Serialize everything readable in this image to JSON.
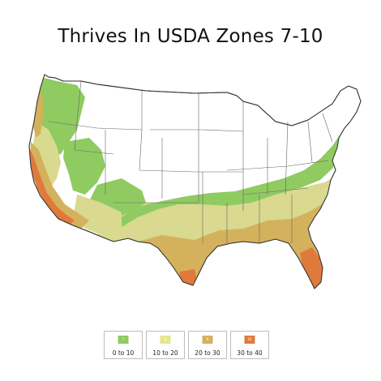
{
  "title": "Thrives In USDA Zones 7-10",
  "colors": {
    "zone7": "#8fcb61",
    "zone8": "#d9d990",
    "zone9": "#d4b25d",
    "zone10": "#e07a3c",
    "land": "#ffffff",
    "border": "#555555"
  },
  "legend": [
    {
      "zone": "7",
      "range": "0 to 10"
    },
    {
      "zone": "8",
      "range": "10 to 20"
    },
    {
      "zone": "9",
      "range": "20 to 30"
    },
    {
      "zone": "10",
      "range": "30 to 40"
    }
  ]
}
